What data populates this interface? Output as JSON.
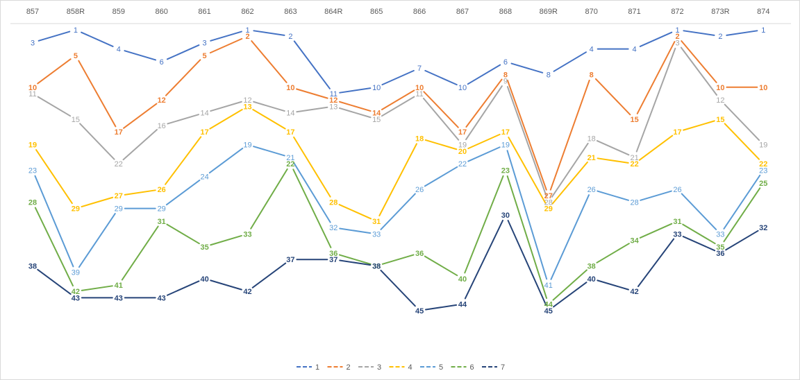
{
  "chart_data": {
    "type": "line",
    "categories": [
      "857",
      "858R",
      "859",
      "860",
      "861",
      "862",
      "863",
      "864R",
      "865",
      "866",
      "867",
      "868",
      "869R",
      "870",
      "871",
      "872",
      "873R",
      "874"
    ],
    "ylim": [
      1,
      45
    ],
    "y_inverted": true,
    "y_axis_visible": false,
    "x_axis_position": "top",
    "grid": false,
    "data_labels": true,
    "legend_position": "bottom",
    "series": [
      {
        "name": "1",
        "color": "#4472C4",
        "label_bold": false,
        "values": [
          3,
          1,
          4,
          6,
          3,
          1,
          2,
          11,
          10,
          7,
          10,
          6,
          8,
          4,
          4,
          1,
          2,
          1
        ]
      },
      {
        "name": "2",
        "color": "#ED7D31",
        "label_bold": true,
        "values": [
          10,
          5,
          17,
          12,
          5,
          2,
          10,
          12,
          14,
          10,
          17,
          8,
          27,
          8,
          15,
          2,
          10,
          10
        ]
      },
      {
        "name": "3",
        "color": "#A5A5A5",
        "label_bold": false,
        "values": [
          11,
          15,
          22,
          16,
          14,
          12,
          14,
          13,
          15,
          11,
          19,
          9,
          28,
          18,
          21,
          3,
          12,
          19
        ]
      },
      {
        "name": "4",
        "color": "#FFC000",
        "label_bold": true,
        "values": [
          19,
          29,
          27,
          26,
          17,
          13,
          17,
          28,
          31,
          18,
          20,
          17,
          29,
          21,
          22,
          17,
          15,
          22
        ]
      },
      {
        "name": "5",
        "color": "#5B9BD5",
        "label_bold": false,
        "values": [
          23,
          39,
          29,
          29,
          24,
          19,
          21,
          32,
          33,
          26,
          22,
          19,
          41,
          26,
          28,
          26,
          33,
          23
        ]
      },
      {
        "name": "6",
        "color": "#70AD47",
        "label_bold": true,
        "values": [
          28,
          42,
          41,
          31,
          35,
          33,
          22,
          36,
          38,
          36,
          40,
          23,
          44,
          38,
          34,
          31,
          35,
          25
        ]
      },
      {
        "name": "7",
        "color": "#264478",
        "label_bold": true,
        "values": [
          38,
          43,
          43,
          43,
          40,
          42,
          37,
          37,
          38,
          45,
          44,
          30,
          45,
          40,
          42,
          33,
          36,
          32
        ]
      }
    ]
  }
}
